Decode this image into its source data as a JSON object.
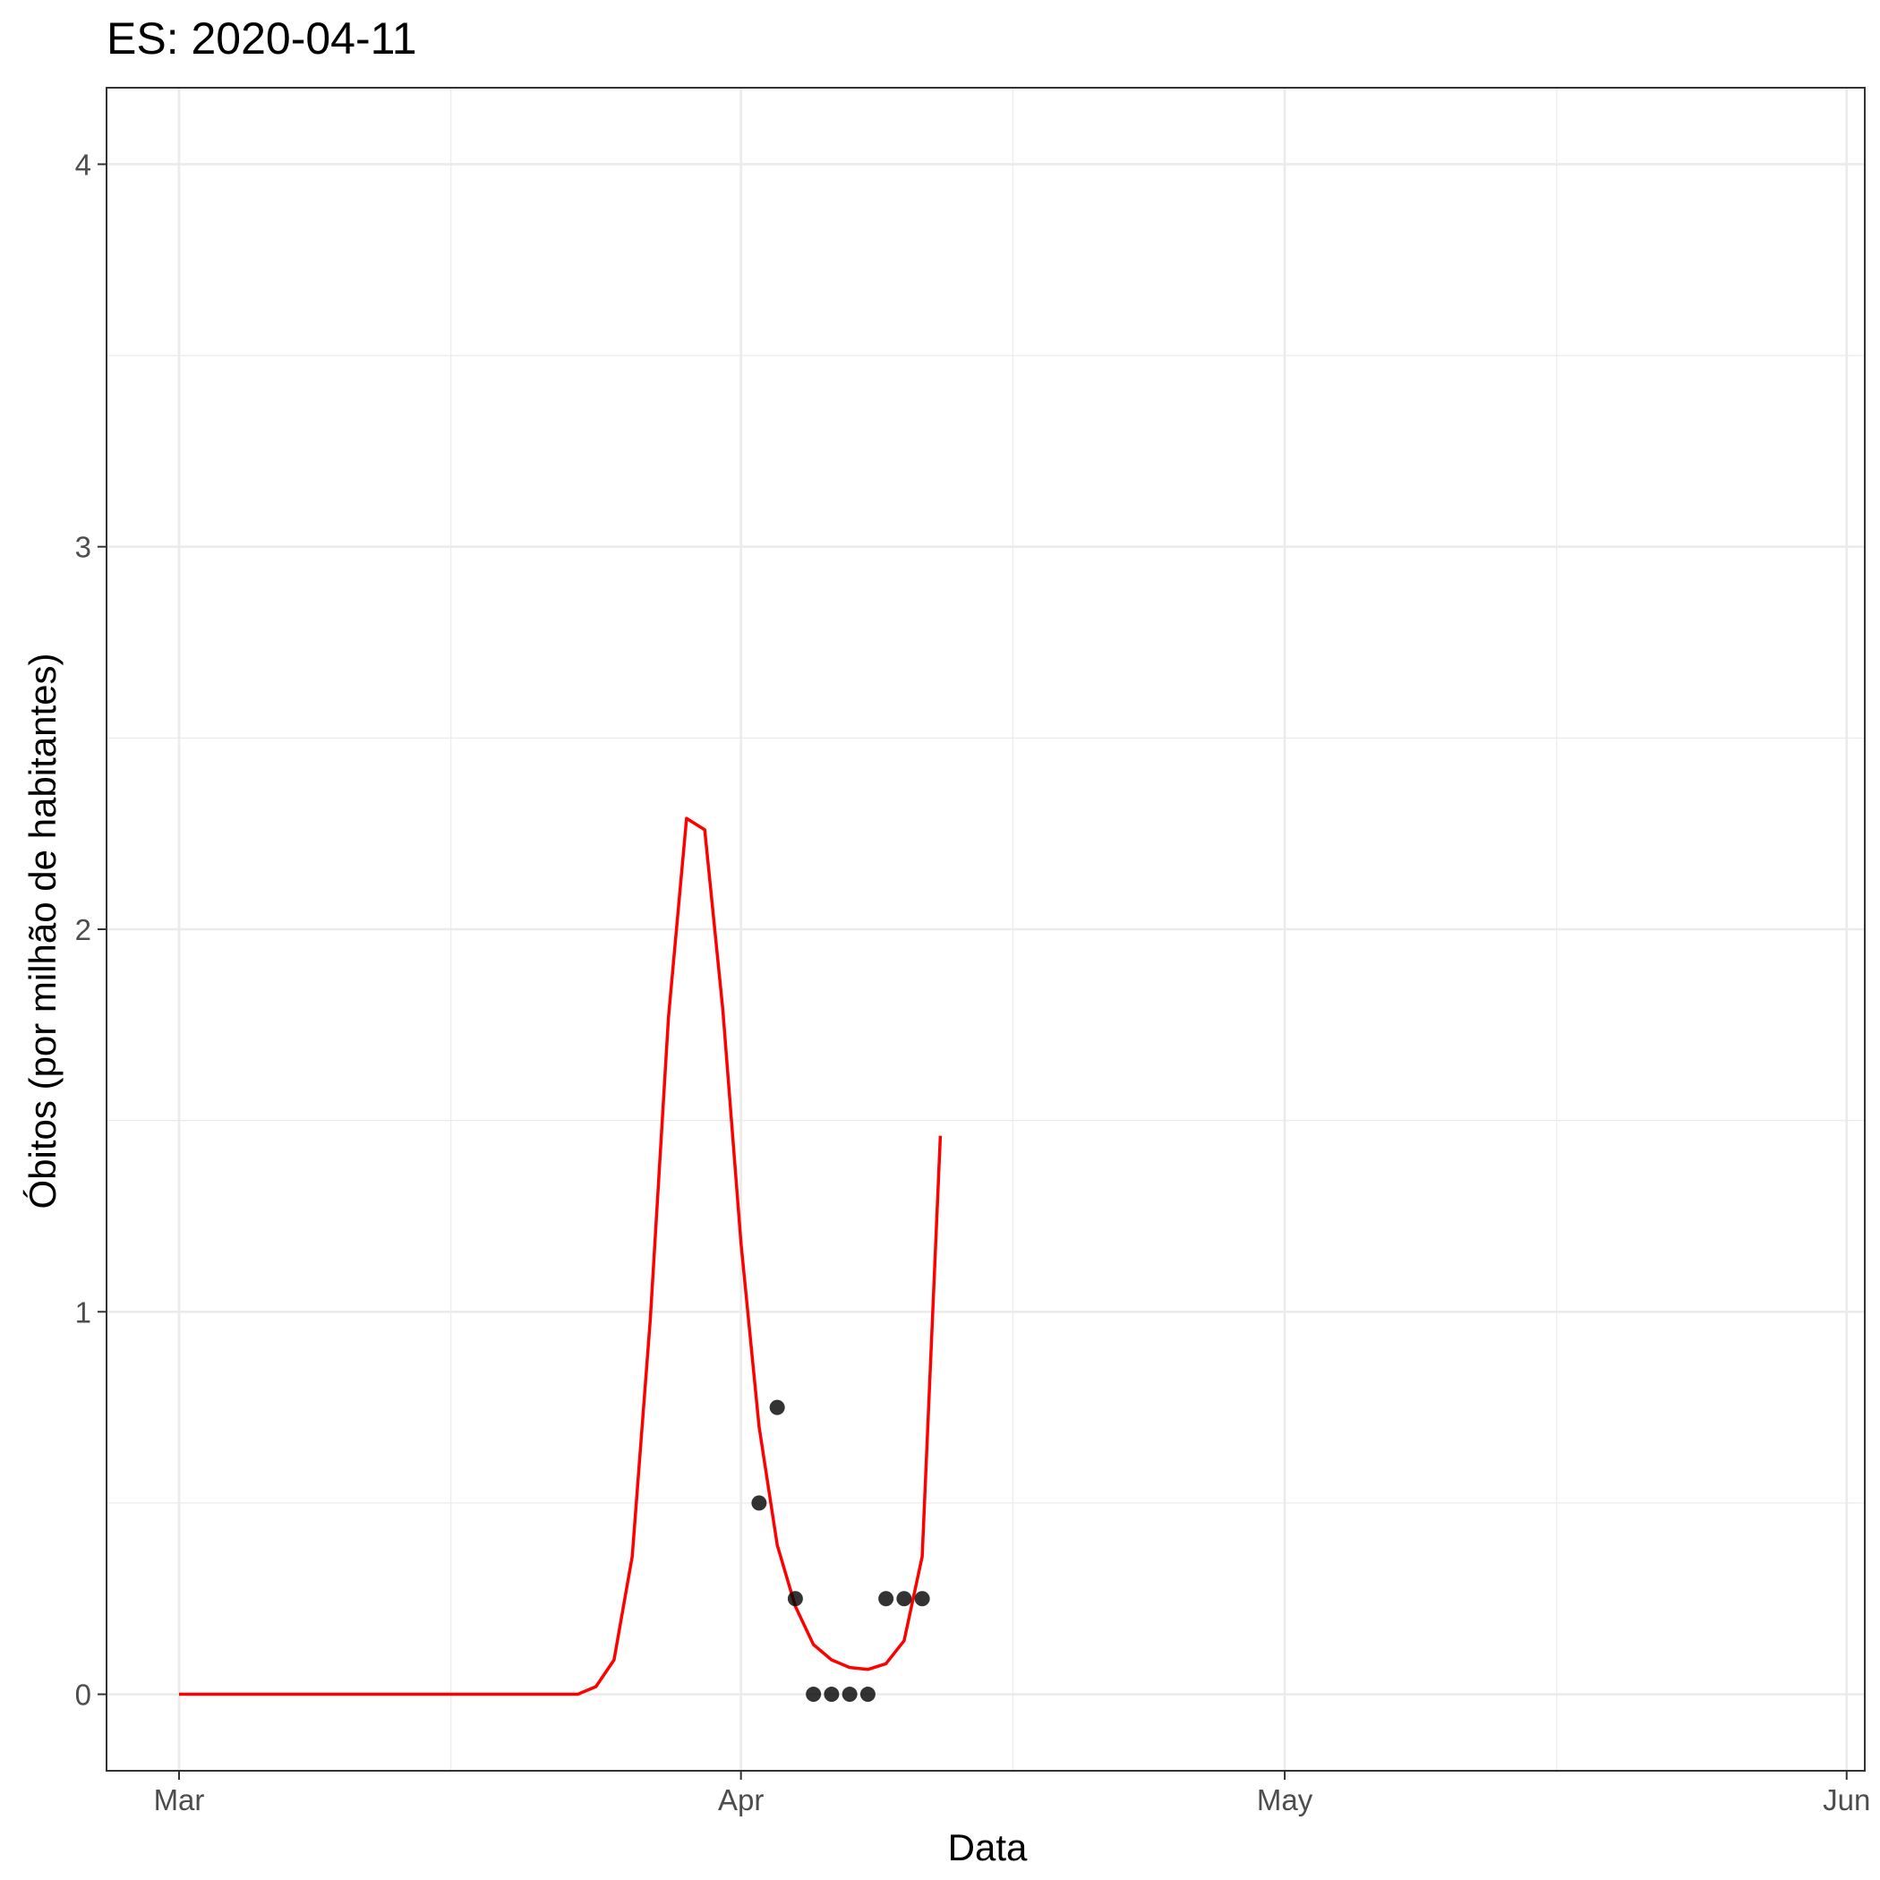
{
  "chart_data": {
    "type": "line",
    "title": "ES: 2020-04-11",
    "xlabel": "Data",
    "ylabel": "Óbitos (por milhão de habitantes)",
    "xlim": [
      "2020-02-26",
      "2020-06-02"
    ],
    "ylim": [
      -0.2,
      4.2
    ],
    "grid": true,
    "legend": "none",
    "x_ticks": [
      {
        "date": "2020-03-01",
        "label": "Mar"
      },
      {
        "date": "2020-04-01",
        "label": "Apr"
      },
      {
        "date": "2020-05-01",
        "label": "May"
      },
      {
        "date": "2020-06-01",
        "label": "Jun"
      }
    ],
    "x_minor_ticks": [
      "2020-03-16",
      "2020-04-16",
      "2020-05-16"
    ],
    "y_ticks": [
      0,
      1,
      2,
      3,
      4
    ],
    "y_minor_ticks": [
      0.5,
      1.5,
      2.5,
      3.5
    ],
    "series": [
      {
        "kind": "line",
        "color": "#ff0000",
        "points": [
          [
            "2020-03-01",
            0
          ],
          [
            "2020-03-23",
            0
          ],
          [
            "2020-03-24",
            0.02
          ],
          [
            "2020-03-25",
            0.09
          ],
          [
            "2020-03-26",
            0.36
          ],
          [
            "2020-03-27",
            0.98
          ],
          [
            "2020-03-28",
            1.77
          ],
          [
            "2020-03-29",
            2.29
          ],
          [
            "2020-03-30",
            2.26
          ],
          [
            "2020-03-31",
            1.79
          ],
          [
            "2020-04-01",
            1.18
          ],
          [
            "2020-04-02",
            0.7
          ],
          [
            "2020-04-03",
            0.39
          ],
          [
            "2020-04-04",
            0.23
          ],
          [
            "2020-04-05",
            0.13
          ],
          [
            "2020-04-06",
            0.09
          ],
          [
            "2020-04-07",
            0.07
          ],
          [
            "2020-04-08",
            0.065
          ],
          [
            "2020-04-09",
            0.08
          ],
          [
            "2020-04-10",
            0.14
          ],
          [
            "2020-04-11",
            0.36
          ],
          [
            "2020-04-12",
            1.46
          ]
        ]
      },
      {
        "kind": "scatter",
        "color": "#000000",
        "points": [
          [
            "2020-04-02",
            0.5
          ],
          [
            "2020-04-03",
            0.75
          ],
          [
            "2020-04-04",
            0.25
          ],
          [
            "2020-04-05",
            0
          ],
          [
            "2020-04-06",
            0
          ],
          [
            "2020-04-07",
            0
          ],
          [
            "2020-04-08",
            0
          ],
          [
            "2020-04-09",
            0.25
          ],
          [
            "2020-04-10",
            0.25
          ],
          [
            "2020-04-11",
            0.25
          ]
        ]
      }
    ],
    "colors": {
      "grid": "#ebebeb",
      "panel_border": "#333333",
      "tick": "#333333"
    }
  }
}
